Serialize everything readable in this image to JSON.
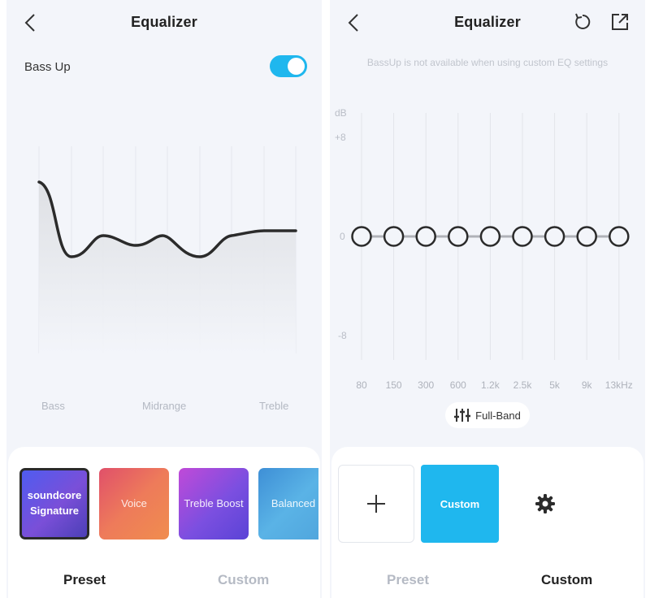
{
  "left_screen": {
    "header": {
      "title": "Equalizer",
      "back_icon": "chevron-left-icon"
    },
    "bass_up": {
      "label": "Bass Up",
      "enabled": true
    },
    "curve": {
      "region_labels": [
        "Bass",
        "Midrange",
        "Treble"
      ]
    },
    "presets": [
      {
        "label": "soundcore Signature",
        "line1": "soundcore",
        "line2": "Signature",
        "selected": true
      },
      {
        "label": "Voice",
        "selected": false
      },
      {
        "label": "Treble Boost",
        "selected": false
      },
      {
        "label": "Balanced",
        "selected": false
      }
    ],
    "tabs": {
      "preset": "Preset",
      "custom": "Custom",
      "active": "preset"
    }
  },
  "right_screen": {
    "header": {
      "title": "Equalizer",
      "back_icon": "chevron-left-icon",
      "reset_icon": "reset-icon",
      "share_icon": "share-icon"
    },
    "note": "BassUp is not available when using custom EQ settings",
    "eq": {
      "unit": "dB",
      "scale_labels": [
        "+8",
        "0",
        "-8"
      ],
      "ylim": [
        -8,
        8
      ],
      "bands": [
        "80",
        "150",
        "300",
        "600",
        "1.2k",
        "2.5k",
        "5k",
        "9k",
        "13kHz"
      ],
      "values": [
        0,
        0,
        0,
        0,
        0,
        0,
        0,
        0,
        0
      ]
    },
    "full_band": {
      "label": "Full-Band",
      "icon": "sliders-icon"
    },
    "custom_presets": {
      "add_icon": "plus-icon",
      "custom_label": "Custom",
      "settings_icon": "gear-icon"
    },
    "tabs": {
      "preset": "Preset",
      "custom": "Custom",
      "active": "custom"
    }
  },
  "colors": {
    "accent": "#1fb7ee",
    "text": "#222222",
    "muted": "#b5bac4",
    "background": "#f3f5fa"
  }
}
